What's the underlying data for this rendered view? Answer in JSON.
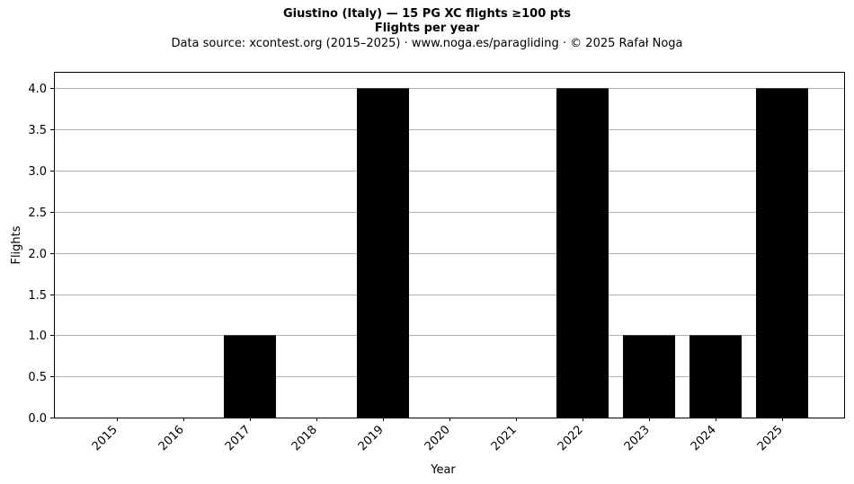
{
  "chart_data": {
    "type": "bar",
    "title": "Giustino (Italy)  —  15 PG XC flights ≥100 pts",
    "subtitle": "Flights per year",
    "source_line": "Data source: xcontest.org (2015–2025)  ·  www.noga.es/paragliding  ·  © 2025 Rafał Noga",
    "xlabel": "Year",
    "ylabel": "Flights",
    "categories": [
      "2015",
      "2016",
      "2017",
      "2018",
      "2019",
      "2020",
      "2021",
      "2022",
      "2023",
      "2024",
      "2025"
    ],
    "values": [
      0,
      0,
      1,
      0,
      4,
      0,
      0,
      4,
      1,
      1,
      4
    ],
    "ylim": [
      0,
      4.2
    ],
    "yticks": [
      "0.0",
      "0.5",
      "1.0",
      "1.5",
      "2.0",
      "2.5",
      "3.0",
      "3.5",
      "4.0"
    ],
    "grid": "horizontal",
    "bar_color": "#000000",
    "grid_color": "#b0b0b0"
  }
}
